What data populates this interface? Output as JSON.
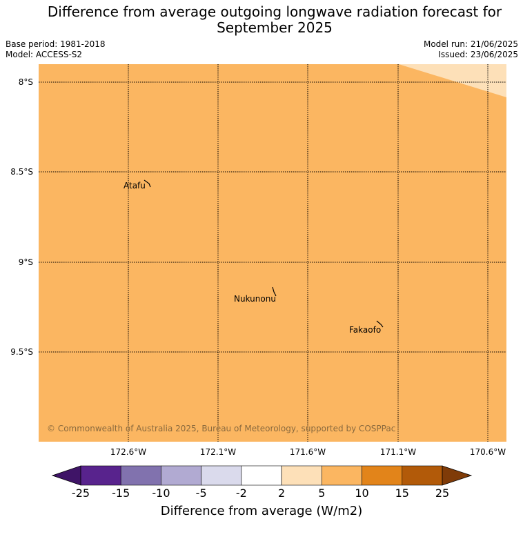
{
  "header": {
    "title_line1": "Difference from average outgoing longwave radiation forecast for",
    "title_line2": "September 2025",
    "base_period": "Base period: 1981-2018",
    "model": "Model: ACCESS-S2",
    "model_run": "Model run: 21/06/2025",
    "issued": "Issued: 23/06/2025"
  },
  "map": {
    "fill_color": "#fbb661",
    "corner_fill_color": "#fde0b8",
    "latitude_labels": [
      "8°S",
      "8.5°S",
      "9°S",
      "9.5°S"
    ],
    "longitude_labels": [
      "172.6°W",
      "172.1°W",
      "171.6°W",
      "171.1°W",
      "170.6°W"
    ],
    "places": [
      {
        "name": "Atafu"
      },
      {
        "name": "Nukunonu"
      },
      {
        "name": "Fakaofo"
      }
    ],
    "copyright": "© Commonwealth of Australia 2025, Bureau of Meteorology, supported by COSPPac"
  },
  "colorbar": {
    "ticks": [
      "-25",
      "-15",
      "-10",
      "-5",
      "-2",
      "2",
      "5",
      "10",
      "15",
      "25"
    ],
    "colors": [
      "#3f1467",
      "#58238d",
      "#8172ae",
      "#b1aad2",
      "#dadaec",
      "#ffffff",
      "#fde0b8",
      "#fbb661",
      "#e2841a",
      "#b25a09",
      "#7f3b08"
    ],
    "label": "Difference from average (W/m2)"
  }
}
